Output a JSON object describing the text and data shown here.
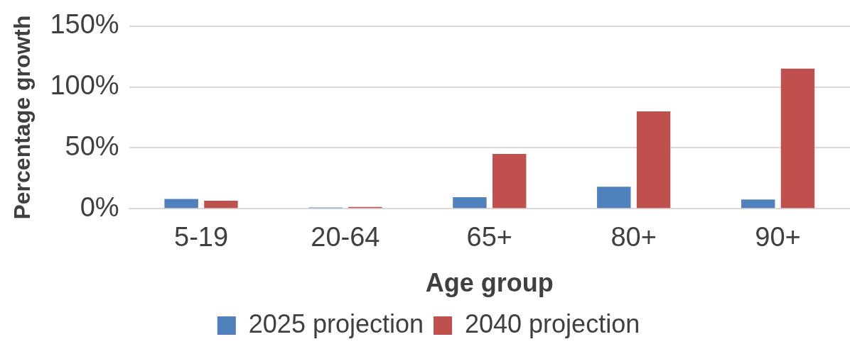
{
  "chart_data": {
    "type": "bar",
    "xlabel": "Age group",
    "ylabel": "Percentage growth",
    "categories": [
      "5-19",
      "20-64",
      "65+",
      "80+",
      "90+"
    ],
    "series": [
      {
        "name": "2025 projection",
        "color": "#4f81bd",
        "values": [
          8,
          1,
          9.5,
          18,
          7.5
        ]
      },
      {
        "name": "2040 projection",
        "color": "#c0504d",
        "values": [
          6.5,
          1.5,
          45,
          80,
          115
        ]
      }
    ],
    "ylim": [
      0,
      150
    ],
    "yticks": [
      {
        "value": 0,
        "label": "0%"
      },
      {
        "value": 50,
        "label": "50%"
      },
      {
        "value": 100,
        "label": "100%"
      },
      {
        "value": 150,
        "label": "150%"
      }
    ],
    "grid": "y",
    "legend": "bottom"
  }
}
